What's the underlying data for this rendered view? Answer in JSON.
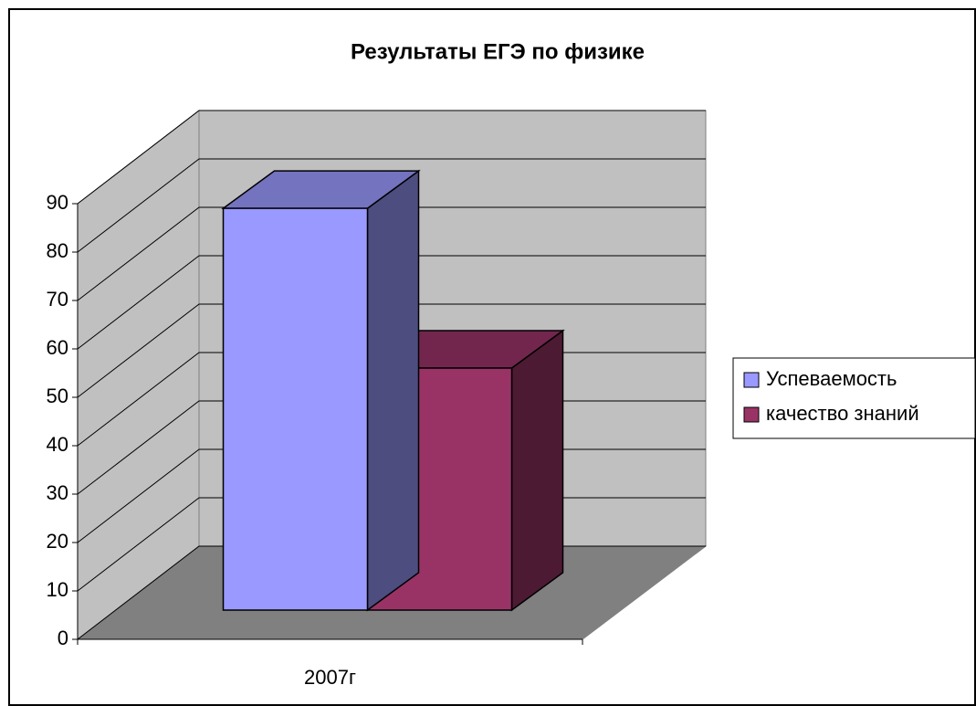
{
  "chart_data": {
    "type": "bar3d",
    "title": "Результаты ЕГЭ по физике",
    "categories": [
      "2007г"
    ],
    "series": [
      {
        "name": "Успеваемость",
        "color": "#9999ff",
        "values": [
          83
        ]
      },
      {
        "name": "качество знаний",
        "color": "#993366",
        "values": [
          50
        ]
      }
    ],
    "ylim": [
      0,
      90
    ],
    "yticks": [
      0,
      10,
      20,
      30,
      40,
      50,
      60,
      70,
      80,
      90
    ],
    "grid": true,
    "legend": "right"
  }
}
